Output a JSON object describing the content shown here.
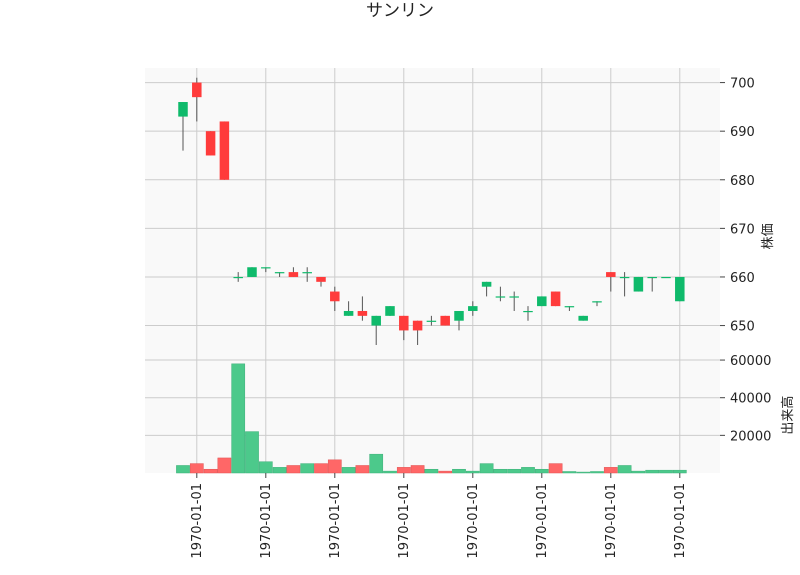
{
  "chart_data": {
    "type": "candlestick",
    "title": "サンリン",
    "price_panel": {
      "ylabel": "株価",
      "ylim": [
        646,
        703
      ],
      "yticks": [
        650,
        660,
        670,
        680,
        690,
        700
      ],
      "grid": true
    },
    "volume_panel": {
      "ylabel": "出来高",
      "ylim": [
        0,
        68000
      ],
      "yticks": [
        20000,
        40000,
        60000
      ],
      "grid": true
    },
    "x_tick_labels": [
      "1970-01-01",
      "1970-01-01",
      "1970-01-01",
      "1970-01-01",
      "1970-01-01",
      "1970-01-01",
      "1970-01-01",
      "1970-01-01"
    ],
    "x_tick_positions": [
      1,
      6,
      11,
      16,
      21,
      26,
      31,
      36
    ],
    "colors": {
      "up": "#0fba6b",
      "down": "#ff3b3b",
      "volume_up": "#4cc98b",
      "volume_down": "#ff6767",
      "wick": "#555555",
      "panel_bg": "#f9f9f9",
      "grid": "#cccccc"
    },
    "candles": [
      {
        "open": 693,
        "high": 696,
        "low": 686,
        "close": 696,
        "volume": 4000
      },
      {
        "open": 700,
        "high": 701,
        "low": 692,
        "close": 697,
        "volume": 5000
      },
      {
        "open": 690,
        "high": 690,
        "low": 685,
        "close": 685,
        "volume": 2000
      },
      {
        "open": 692,
        "high": 692,
        "low": 680,
        "close": 680,
        "volume": 8000
      },
      {
        "open": 660,
        "high": 661,
        "low": 659,
        "close": 660,
        "volume": 58000
      },
      {
        "open": 660,
        "high": 662,
        "low": 660,
        "close": 662,
        "volume": 22000
      },
      {
        "open": 662,
        "high": 662,
        "low": 661,
        "close": 662,
        "volume": 6000
      },
      {
        "open": 661,
        "high": 661,
        "low": 660,
        "close": 661,
        "volume": 3000
      },
      {
        "open": 661,
        "high": 662,
        "low": 660,
        "close": 660,
        "volume": 4000
      },
      {
        "open": 661,
        "high": 662,
        "low": 659,
        "close": 661,
        "volume": 5000
      },
      {
        "open": 660,
        "high": 660,
        "low": 658,
        "close": 659,
        "volume": 5000
      },
      {
        "open": 657,
        "high": 658,
        "low": 653,
        "close": 655,
        "volume": 7000
      },
      {
        "open": 652,
        "high": 655,
        "low": 652,
        "close": 653,
        "volume": 3000
      },
      {
        "open": 653,
        "high": 656,
        "low": 651,
        "close": 652,
        "volume": 4000
      },
      {
        "open": 650,
        "high": 652,
        "low": 646,
        "close": 652,
        "volume": 10000
      },
      {
        "open": 652,
        "high": 654,
        "low": 652,
        "close": 654,
        "volume": 1000
      },
      {
        "open": 652,
        "high": 652,
        "low": 647,
        "close": 649,
        "volume": 3000
      },
      {
        "open": 651,
        "high": 651,
        "low": 646,
        "close": 649,
        "volume": 4000
      },
      {
        "open": 651,
        "high": 652,
        "low": 650,
        "close": 651,
        "volume": 2000
      },
      {
        "open": 652,
        "high": 652,
        "low": 650,
        "close": 650,
        "volume": 1000
      },
      {
        "open": 651,
        "high": 653,
        "low": 649,
        "close": 653,
        "volume": 2000
      },
      {
        "open": 653,
        "high": 655,
        "low": 652,
        "close": 654,
        "volume": 1000
      },
      {
        "open": 658,
        "high": 659,
        "low": 656,
        "close": 659,
        "volume": 5000
      },
      {
        "open": 656,
        "high": 658,
        "low": 655,
        "close": 656,
        "volume": 2000
      },
      {
        "open": 656,
        "high": 657,
        "low": 653,
        "close": 656,
        "volume": 2000
      },
      {
        "open": 653,
        "high": 654,
        "low": 651,
        "close": 653,
        "volume": 3000
      },
      {
        "open": 654,
        "high": 656,
        "low": 654,
        "close": 656,
        "volume": 2000
      },
      {
        "open": 657,
        "high": 657,
        "low": 654,
        "close": 654,
        "volume": 5000
      },
      {
        "open": 654,
        "high": 654,
        "low": 653,
        "close": 654,
        "volume": 800
      },
      {
        "open": 651,
        "high": 652,
        "low": 651,
        "close": 652,
        "volume": 500
      },
      {
        "open": 655,
        "high": 655,
        "low": 654,
        "close": 655,
        "volume": 800
      },
      {
        "open": 661,
        "high": 661,
        "low": 657,
        "close": 660,
        "volume": 3000
      },
      {
        "open": 660,
        "high": 661,
        "low": 656,
        "close": 660,
        "volume": 4000
      },
      {
        "open": 657,
        "high": 660,
        "low": 657,
        "close": 660,
        "volume": 1000
      },
      {
        "open": 660,
        "high": 660,
        "low": 657,
        "close": 660,
        "volume": 1500
      },
      {
        "open": 660,
        "high": 660,
        "low": 660,
        "close": 660,
        "volume": 1500
      },
      {
        "open": 655,
        "high": 660,
        "low": 655,
        "close": 660,
        "volume": 1500
      }
    ]
  }
}
